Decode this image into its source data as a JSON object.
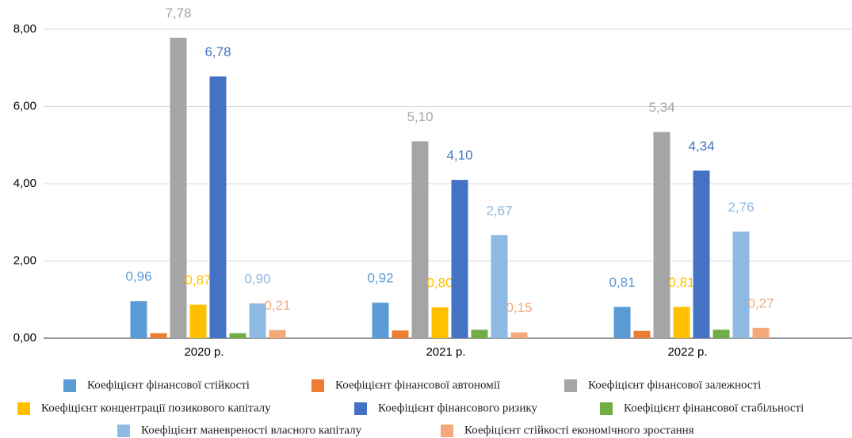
{
  "chart_data": {
    "type": "bar",
    "categories": [
      "2020 р.",
      "2021 р.",
      "2022 р."
    ],
    "series": [
      {
        "name": "Коефіцієнт фінансової стійкості",
        "color": "#5b9bd5",
        "values": [
          0.96,
          0.92,
          0.81
        ],
        "value_labels": [
          "0,96",
          "0,92",
          "0,81"
        ]
      },
      {
        "name": "Коефіцієнт фінансової автономії",
        "color": "#ed7d31",
        "values": [
          0.13,
          0.2,
          0.19
        ]
      },
      {
        "name": "Коефіцієнт фінансової залежності",
        "color": "#a5a5a5",
        "values": [
          7.78,
          5.1,
          5.34
        ],
        "value_labels": [
          "7,78",
          "5,10",
          "5,34"
        ]
      },
      {
        "name": "Коефіцієнт концентрації позикового капіталу",
        "color": "#ffc000",
        "values": [
          0.87,
          0.8,
          0.81
        ],
        "value_labels": [
          "0,87",
          "0,80",
          "0,81"
        ]
      },
      {
        "name": "Коефіцієнт фінансового ризику",
        "color": "#4472c4",
        "values": [
          6.78,
          4.1,
          4.34
        ],
        "value_labels": [
          "6,78",
          "4,10",
          "4,34"
        ]
      },
      {
        "name": "Коефіцієнт фінансової стабільності",
        "color": "#70ad47",
        "values": [
          0.13,
          0.22,
          0.22
        ]
      },
      {
        "name": "Коефіцієнт маневреності власного капіталу",
        "color": "#8eb9e3",
        "values": [
          0.9,
          2.67,
          2.76
        ],
        "value_labels": [
          "0,90",
          "2,67",
          "2,76"
        ]
      },
      {
        "name": "Коефіцієнт стійкості економічного зростання",
        "color": "#f4a97a",
        "values": [
          0.21,
          0.15,
          0.27
        ],
        "value_labels": [
          "0,21",
          "0,15",
          "0,27"
        ]
      }
    ],
    "ylim": [
      0,
      8
    ],
    "yticks": [
      {
        "value": 0,
        "label": "0,00"
      },
      {
        "value": 2,
        "label": "2,00"
      },
      {
        "value": 4,
        "label": "4,00"
      },
      {
        "value": 6,
        "label": "6,00"
      },
      {
        "value": 8,
        "label": "8,00"
      }
    ],
    "grid": true
  }
}
